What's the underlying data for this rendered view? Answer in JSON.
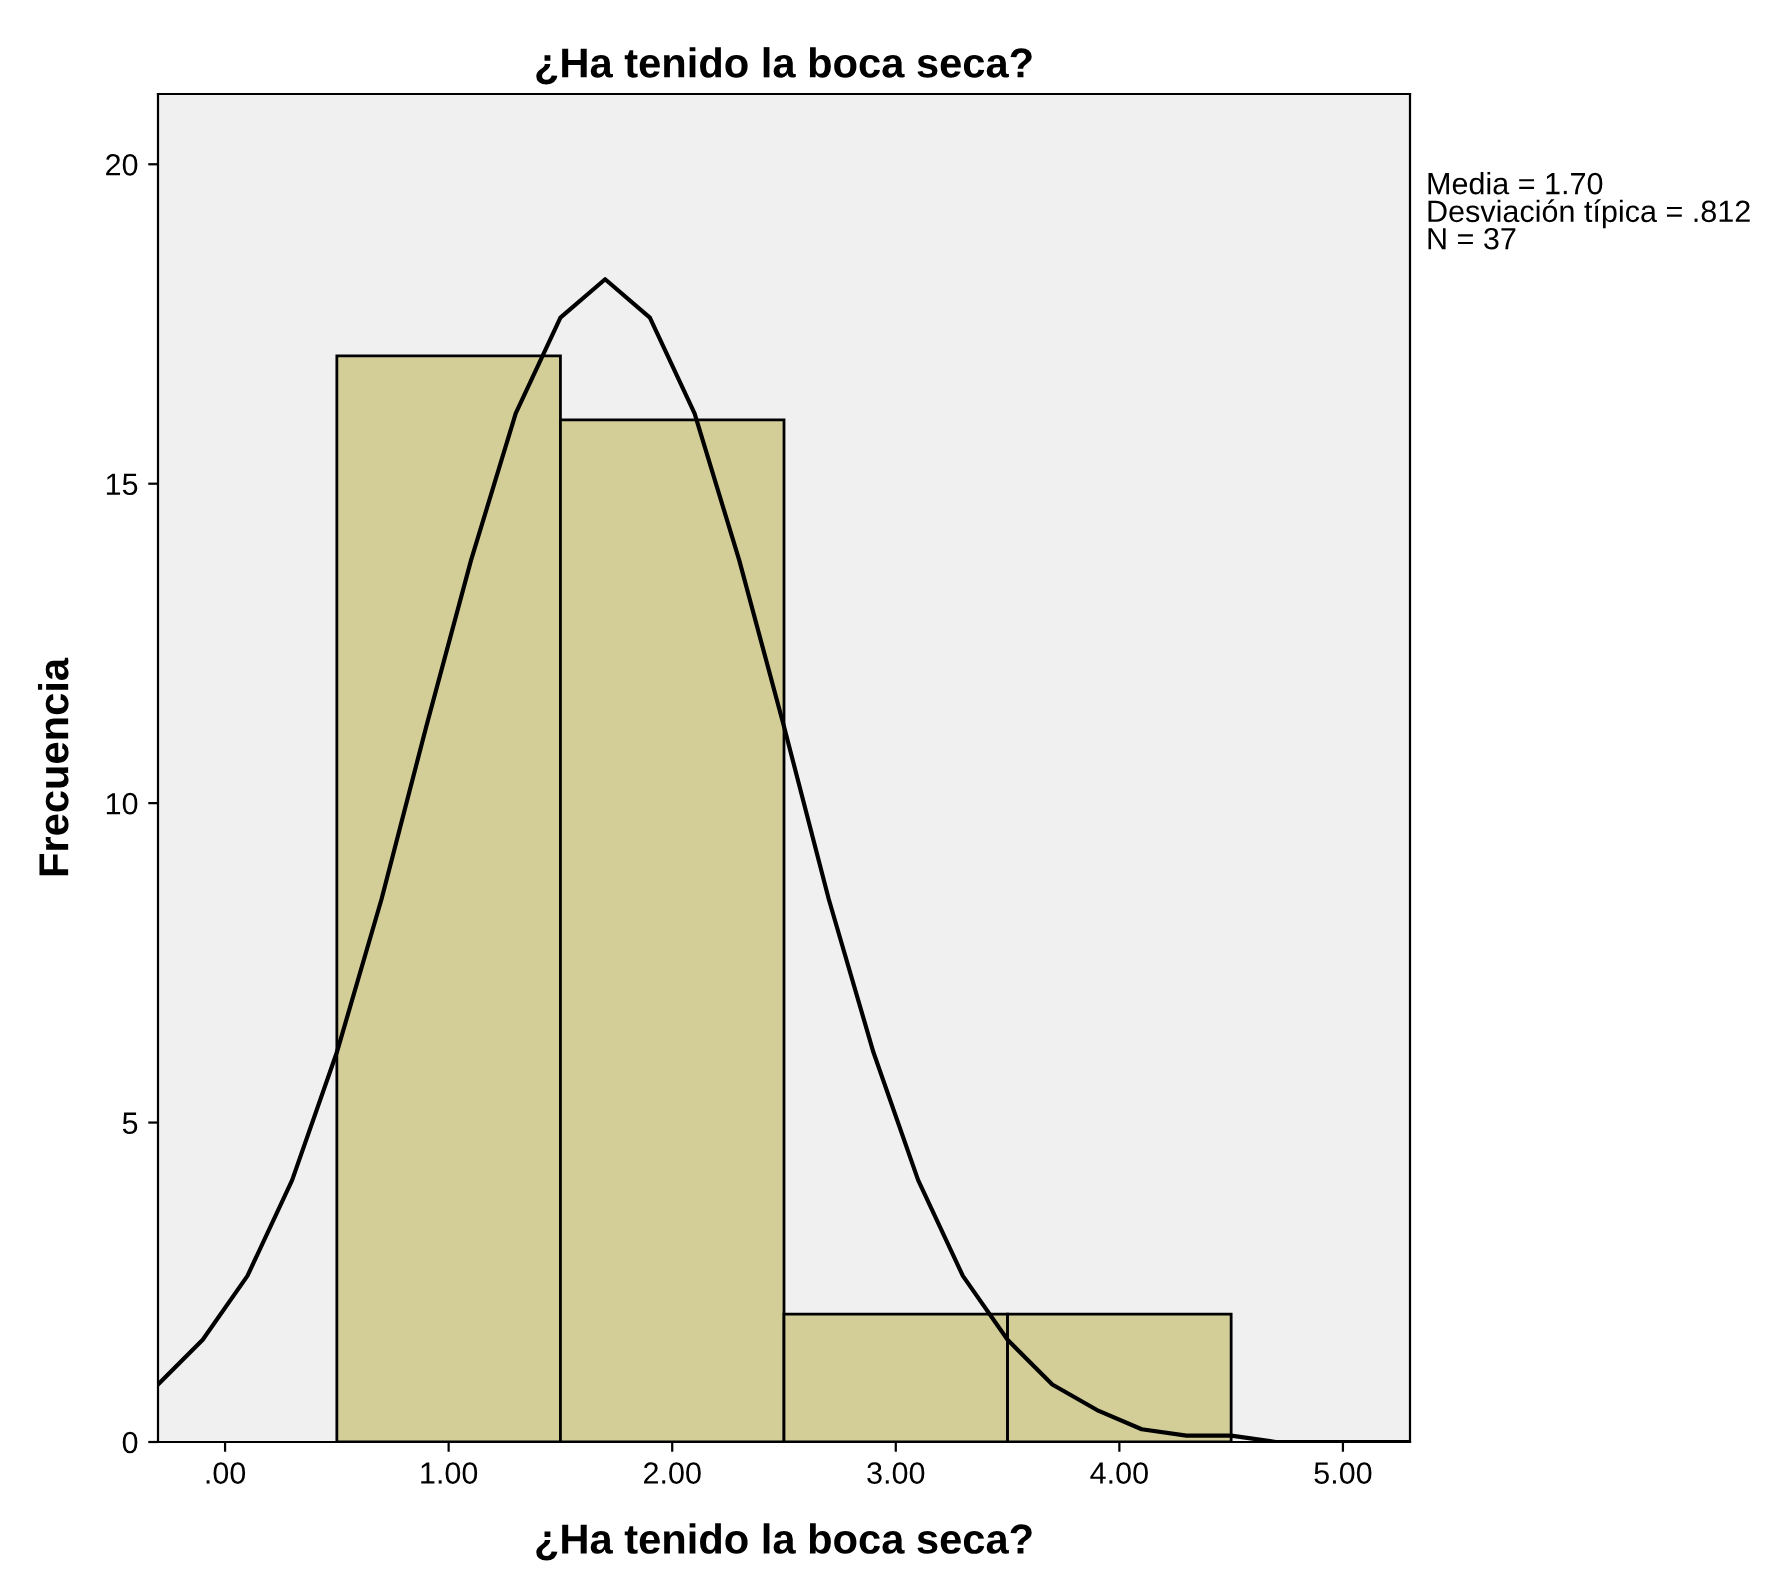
{
  "chart_data": {
    "type": "histogram",
    "title": "¿Ha tenido la boca seca?",
    "xlabel": "¿Ha tenido la boca seca?",
    "ylabel": "Frecuencia",
    "bins": [
      0.5,
      1.5,
      2.5,
      3.5,
      4.5
    ],
    "values": [
      17,
      16,
      2,
      2
    ],
    "color": "#d3ce97",
    "series": [
      {
        "type": "line",
        "color": "#000000",
        "x": [
          -0.3,
          -0.1,
          0.1,
          0.3,
          0.5,
          0.7,
          0.9,
          1.1,
          1.3,
          1.5,
          1.7,
          1.9,
          2.1,
          2.3,
          2.5,
          2.7,
          2.9,
          3.1,
          3.3,
          3.5,
          3.7,
          3.9,
          4.1,
          4.3,
          4.5,
          4.7,
          5.0,
          5.3
        ],
        "values": [
          0.9,
          1.6,
          2.6,
          4.1,
          6.1,
          8.5,
          11.2,
          13.8,
          16.1,
          17.6,
          18.2,
          17.6,
          16.1,
          13.8,
          11.2,
          8.5,
          6.1,
          4.1,
          2.6,
          1.6,
          0.9,
          0.5,
          0.2,
          0.1,
          0.1,
          0.0,
          0.0,
          0.0
        ]
      }
    ],
    "xlim": [
      -0.3,
      5.3
    ],
    "ylim": [
      0,
      21.1
    ],
    "xticks": [
      {
        "value": 0,
        "label": ".00"
      },
      {
        "value": 1,
        "label": "1.00"
      },
      {
        "value": 2,
        "label": "2.00"
      },
      {
        "value": 3,
        "label": "3.00"
      },
      {
        "value": 4,
        "label": "4.00"
      },
      {
        "value": 5,
        "label": "5.00"
      }
    ],
    "yticks": [
      0,
      5,
      10,
      15,
      20
    ],
    "grid": false,
    "annotations": [
      "Media = 1.70\nDesviación típica = .812\nN = 37"
    ]
  }
}
